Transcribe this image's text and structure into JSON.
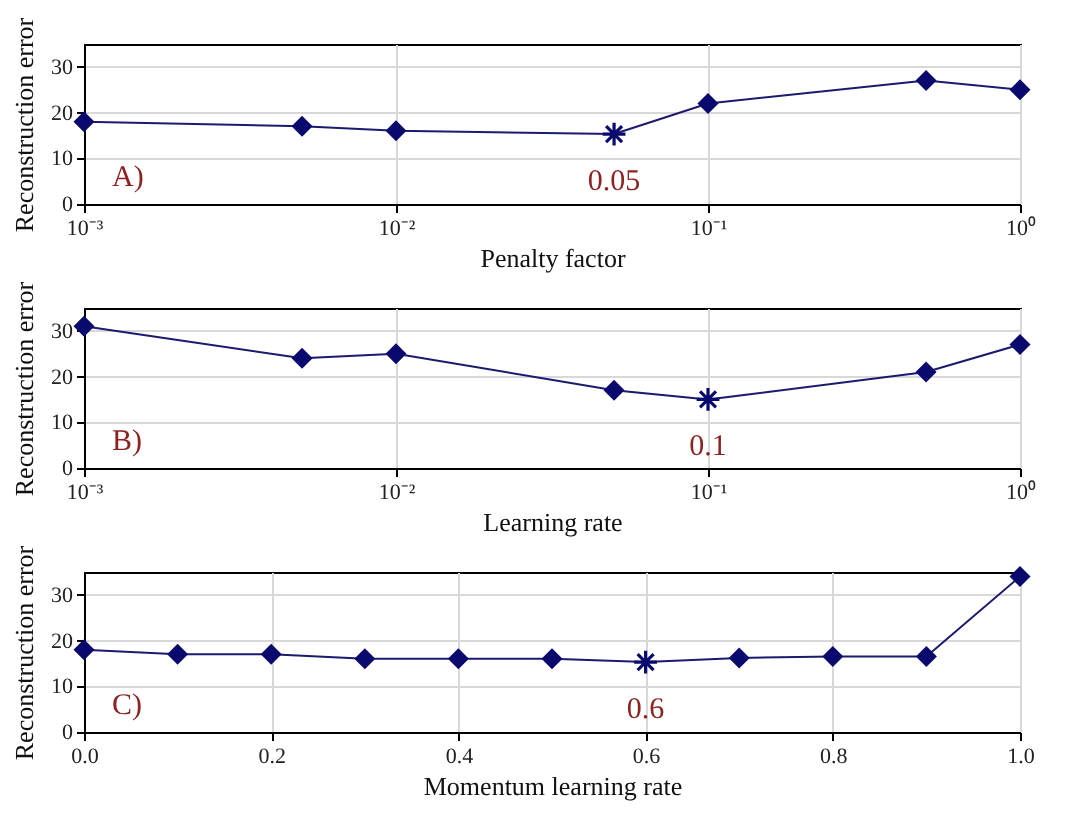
{
  "chart_data": [
    {
      "type": "line",
      "xlabel": "Penalty factor",
      "ylabel": "Reconstruction error",
      "log": "x",
      "grid": true,
      "annotations": [
        "A)",
        {
          "text": "0.05",
          "x": 0.05,
          "y": 15.3
        }
      ],
      "xlim": [
        0.001,
        1
      ],
      "xticks": [
        {
          "value": 0.001,
          "label": "10⁻³"
        },
        {
          "value": 0.01,
          "label": "10⁻²"
        },
        {
          "value": 0.1,
          "label": "10⁻¹"
        },
        {
          "value": 1,
          "label": "10⁰"
        }
      ],
      "ylim": [
        0,
        35
      ],
      "yticks": [
        0,
        10,
        20,
        30
      ],
      "x": [
        0.001,
        0.005,
        0.01,
        0.05,
        0.1,
        0.5,
        1
      ],
      "series": [
        {
          "type": "line",
          "marker": "none",
          "color": "#1a1a6e",
          "values": [
            18,
            17,
            16,
            15.3,
            22,
            27,
            25
          ]
        },
        {
          "type": "scatter",
          "marker": "diamond",
          "color": "#0a0a6e",
          "values": [
            18,
            17,
            16,
            null,
            22,
            27,
            25
          ]
        },
        {
          "type": "scatter",
          "marker": "cross",
          "color": "#0a0a6e",
          "values": [
            null,
            null,
            null,
            15.3,
            null,
            null,
            null
          ]
        }
      ]
    },
    {
      "type": "line",
      "xlabel": "Learning rate",
      "ylabel": "Reconstruction error",
      "log": "x",
      "grid": true,
      "annotations": [
        "B)",
        {
          "text": "0.1",
          "x": 0.1,
          "y": 15
        }
      ],
      "xlim": [
        0.001,
        1
      ],
      "xticks": [
        {
          "value": 0.001,
          "label": "10⁻³"
        },
        {
          "value": 0.01,
          "label": "10⁻²"
        },
        {
          "value": 0.1,
          "label": "10⁻¹"
        },
        {
          "value": 1,
          "label": "10⁰"
        }
      ],
      "ylim": [
        0,
        35
      ],
      "yticks": [
        0,
        10,
        20,
        30
      ],
      "x": [
        0.001,
        0.005,
        0.01,
        0.05,
        0.1,
        0.5,
        1
      ],
      "series": [
        {
          "type": "line",
          "marker": "none",
          "color": "#1a1a6e",
          "values": [
            31,
            24,
            25,
            17,
            15,
            21,
            27
          ]
        },
        {
          "type": "scatter",
          "marker": "diamond",
          "color": "#0a0a6e",
          "values": [
            31,
            24,
            25,
            17,
            null,
            21,
            27
          ]
        },
        {
          "type": "scatter",
          "marker": "cross",
          "color": "#0a0a6e",
          "values": [
            null,
            null,
            null,
            null,
            15,
            null,
            null
          ]
        }
      ]
    },
    {
      "type": "line",
      "xlabel": "Momentum learning rate",
      "ylabel": "Reconstruction error",
      "grid": true,
      "annotations": [
        "C)",
        {
          "text": "0.6",
          "x": 0.6,
          "y": 15.3
        }
      ],
      "xlim": [
        0,
        1
      ],
      "xticks": [
        {
          "value": 0,
          "label": "0.0"
        },
        0.2,
        0.4,
        0.6,
        0.8,
        {
          "value": 1,
          "label": "1.0"
        }
      ],
      "ylim": [
        0,
        35
      ],
      "yticks": [
        0,
        10,
        20,
        30
      ],
      "x": [
        0,
        0.1,
        0.2,
        0.3,
        0.4,
        0.5,
        0.6,
        0.7,
        0.8,
        0.9,
        1
      ],
      "series": [
        {
          "type": "line",
          "marker": "none",
          "color": "#1a1a6e",
          "values": [
            18,
            17,
            17,
            16,
            16,
            16,
            15.3,
            16.2,
            16.5,
            16.5,
            34
          ]
        },
        {
          "type": "scatter",
          "marker": "diamond",
          "color": "#0a0a6e",
          "values": [
            18,
            17,
            17,
            16,
            16,
            16,
            null,
            16.2,
            16.5,
            16.5,
            34
          ]
        },
        {
          "type": "scatter",
          "marker": "cross",
          "color": "#0a0a6e",
          "values": [
            null,
            null,
            null,
            null,
            null,
            null,
            15.3,
            null,
            null,
            null,
            null
          ]
        }
      ]
    }
  ]
}
